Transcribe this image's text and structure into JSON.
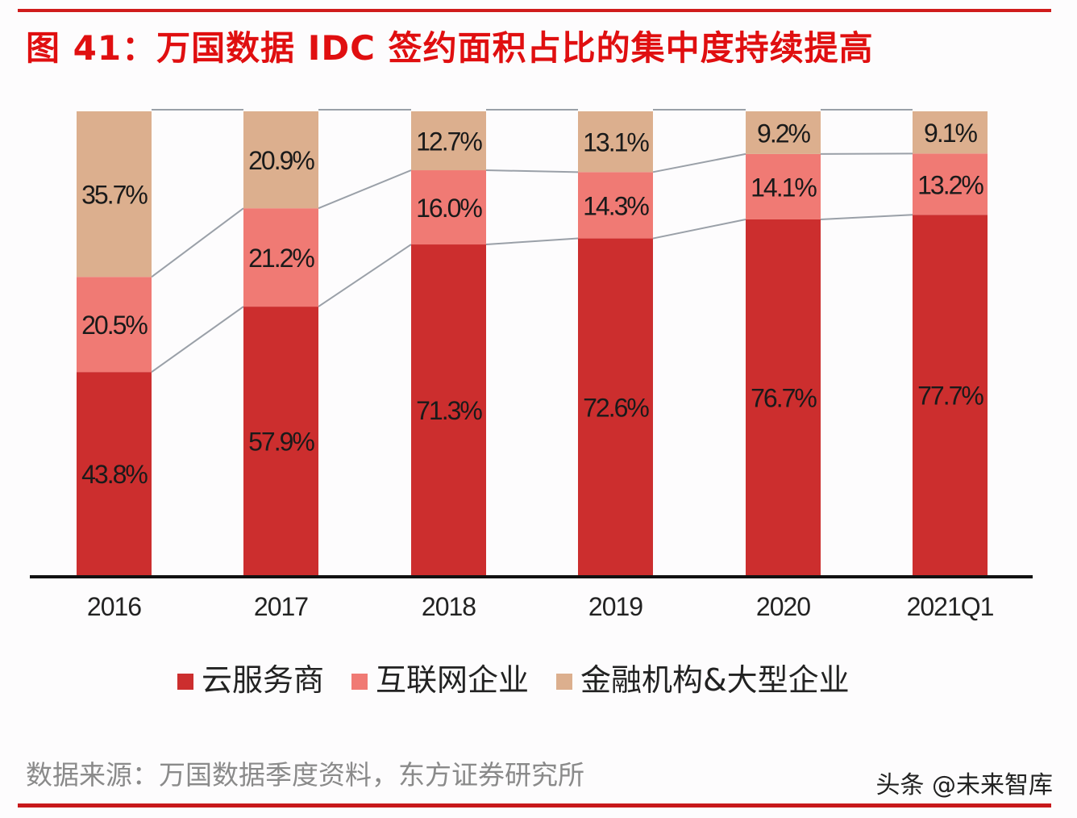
{
  "title": "图 41：万国数据 IDC 签约面积占比的集中度持续提高",
  "colors": {
    "accent": "#d01c1c",
    "title": "#e00f10",
    "cloud": "#cc2e2e",
    "internet": "#f07a74",
    "finance": "#dcaf8e",
    "connector": "#9aa0a8"
  },
  "legend": [
    {
      "label": "云服务商",
      "color": "#cc2e2e"
    },
    {
      "label": "互联网企业",
      "color": "#f07a74"
    },
    {
      "label": "金融机构&大型企业",
      "color": "#dcaf8e"
    }
  ],
  "source": "数据来源：万国数据季度资料，东方证券研究所",
  "watermark": "头条 @未来智库",
  "chart_data": {
    "type": "bar",
    "stacked": true,
    "percent_stacked": true,
    "title": "图 41：万国数据 IDC 签约面积占比的集中度持续提高",
    "xlabel": "",
    "ylabel": "",
    "ylim": [
      0,
      100
    ],
    "grid": false,
    "legend_position": "bottom",
    "categories": [
      "2016",
      "2017",
      "2018",
      "2019",
      "2020",
      "2021Q1"
    ],
    "series": [
      {
        "name": "云服务商",
        "values": [
          43.8,
          57.9,
          71.3,
          72.6,
          76.7,
          77.7
        ],
        "labels": [
          "43.8%",
          "57.9%",
          "71.3%",
          "72.6%",
          "76.7%",
          "77.7%"
        ]
      },
      {
        "name": "互联网企业",
        "values": [
          20.5,
          21.2,
          16.0,
          14.3,
          14.1,
          13.2
        ],
        "labels": [
          "20.5%",
          "21.2%",
          "16.0%",
          "14.3%",
          "14.1%",
          "13.2%"
        ]
      },
      {
        "name": "金融机构&大型企业",
        "values": [
          35.7,
          20.9,
          12.7,
          13.1,
          9.2,
          9.1
        ],
        "labels": [
          "35.7%",
          "20.9%",
          "12.7%",
          "13.1%",
          "9.2%",
          "9.1%"
        ]
      }
    ],
    "series_lines": true
  }
}
